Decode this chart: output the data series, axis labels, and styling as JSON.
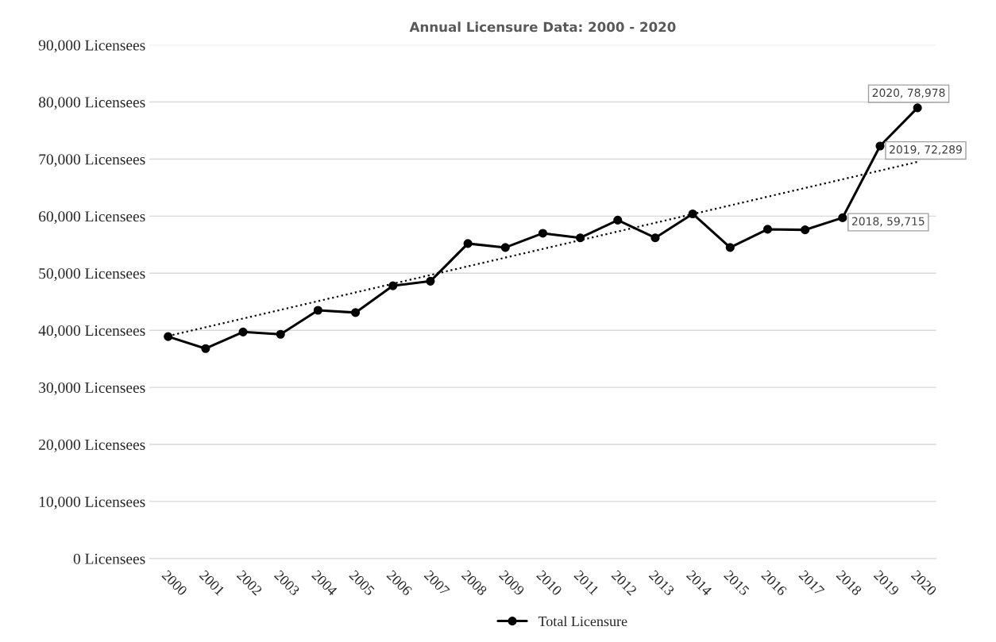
{
  "chart_data": {
    "type": "line",
    "title": "Annual Licensure Data: 2000 - 2020",
    "x": [
      2000,
      2001,
      2002,
      2003,
      2004,
      2005,
      2006,
      2007,
      2008,
      2009,
      2010,
      2011,
      2012,
      2013,
      2014,
      2015,
      2016,
      2017,
      2018,
      2019,
      2020
    ],
    "series": [
      {
        "name": "Total Licensure",
        "color": "#000000",
        "marker": "circle",
        "line_style": "solid",
        "values": [
          38900,
          36800,
          39700,
          39300,
          43500,
          43100,
          47800,
          48600,
          55200,
          54500,
          57000,
          56200,
          59300,
          56200,
          60400,
          54500,
          57700,
          57600,
          59715,
          72289,
          78978
        ],
        "value_labels": [
          null,
          null,
          null,
          null,
          null,
          null,
          null,
          null,
          null,
          null,
          null,
          null,
          null,
          null,
          null,
          null,
          null,
          null,
          "2018, 59,715",
          "2019, 72,289",
          "2020, 78,978"
        ]
      },
      {
        "type": "line",
        "color": "#000000",
        "marker": "none",
        "line_style": "dotted",
        "x": [
          2000,
          2020
        ],
        "values": [
          39000,
          69500
        ]
      }
    ],
    "xlim": [
      1999.5,
      2020.5
    ],
    "xticks": [
      2000,
      2001,
      2002,
      2003,
      2004,
      2005,
      2006,
      2007,
      2008,
      2009,
      2010,
      2011,
      2012,
      2013,
      2014,
      2015,
      2016,
      2017,
      2018,
      2019,
      2020
    ],
    "ylim": [
      0,
      90000
    ],
    "yticks": [
      {
        "value": 0,
        "label": "0 Licensees"
      },
      {
        "value": 10000,
        "label": "10,000 Licensees"
      },
      {
        "value": 20000,
        "label": "20,000 Licensees"
      },
      {
        "value": 30000,
        "label": "30,000 Licensees"
      },
      {
        "value": 40000,
        "label": "40,000 Licensees"
      },
      {
        "value": 50000,
        "label": "50,000 Licensees"
      },
      {
        "value": 60000,
        "label": "60,000 Licensees"
      },
      {
        "value": 70000,
        "label": "70,000 Licensees"
      },
      {
        "value": 80000,
        "label": "80,000 Licensees"
      },
      {
        "value": 90000,
        "label": "90,000 Licensees"
      }
    ],
    "grid": "y",
    "legend": "bottom"
  }
}
